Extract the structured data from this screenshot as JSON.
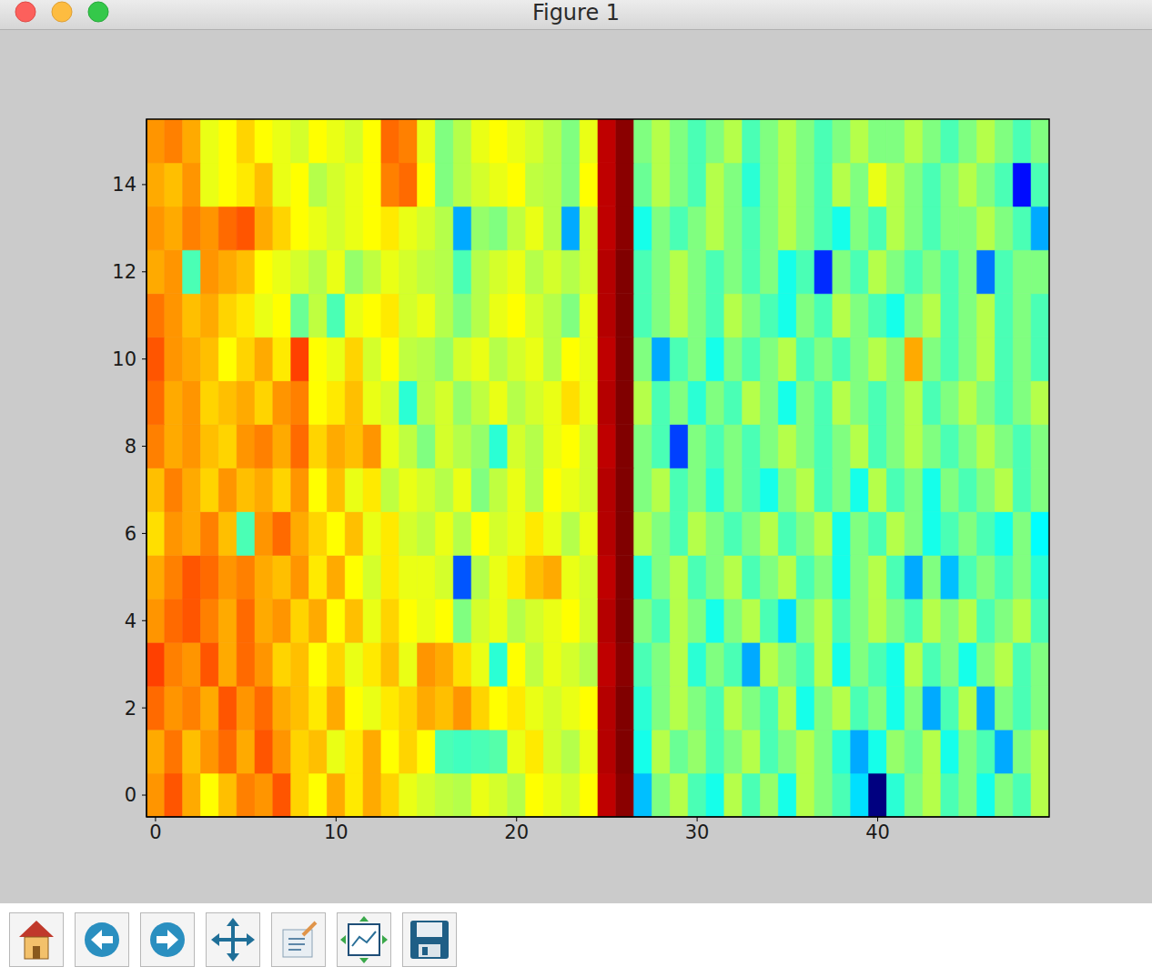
{
  "chart_data": {
    "type": "heatmap",
    "title": "Figure 1",
    "xlim": [
      -0.5,
      49.5
    ],
    "ylim": [
      -0.5,
      15.5
    ],
    "xticks": [
      0,
      10,
      20,
      30,
      40
    ],
    "yticks": [
      0,
      2,
      4,
      6,
      8,
      10,
      12,
      14
    ],
    "cells": [
      [
        0.72,
        0.78,
        0.7,
        0.62,
        0.68,
        0.74,
        0.72,
        0.78,
        0.66,
        0.62,
        0.7,
        0.64,
        0.7,
        0.66,
        0.6,
        0.58,
        0.56,
        0.55,
        0.6,
        0.58,
        0.55,
        0.62,
        0.6,
        0.58,
        0.62,
        0.92,
        0.97,
        0.32,
        0.5,
        0.55,
        0.45,
        0.4,
        0.55,
        0.45,
        0.52,
        0.4,
        0.55,
        0.5,
        0.45,
        0.35,
        0.02,
        0.42,
        0.5,
        0.55,
        0.45,
        0.5,
        0.4,
        0.5,
        0.45,
        0.55
      ],
      [
        0.7,
        0.75,
        0.68,
        0.72,
        0.76,
        0.7,
        0.78,
        0.72,
        0.66,
        0.68,
        0.6,
        0.64,
        0.7,
        0.62,
        0.66,
        0.62,
        0.45,
        0.44,
        0.45,
        0.46,
        0.6,
        0.64,
        0.58,
        0.55,
        0.6,
        0.93,
        0.98,
        0.4,
        0.55,
        0.48,
        0.52,
        0.45,
        0.5,
        0.55,
        0.45,
        0.5,
        0.55,
        0.5,
        0.42,
        0.3,
        0.4,
        0.52,
        0.48,
        0.55,
        0.4,
        0.5,
        0.45,
        0.3,
        0.5,
        0.55
      ],
      [
        0.76,
        0.72,
        0.74,
        0.7,
        0.78,
        0.72,
        0.76,
        0.7,
        0.68,
        0.64,
        0.7,
        0.62,
        0.6,
        0.64,
        0.66,
        0.7,
        0.68,
        0.72,
        0.66,
        0.62,
        0.64,
        0.6,
        0.58,
        0.6,
        0.62,
        0.93,
        0.98,
        0.42,
        0.5,
        0.55,
        0.5,
        0.45,
        0.55,
        0.5,
        0.45,
        0.55,
        0.4,
        0.5,
        0.55,
        0.45,
        0.5,
        0.4,
        0.5,
        0.3,
        0.45,
        0.55,
        0.3,
        0.5,
        0.45,
        0.5
      ],
      [
        0.8,
        0.74,
        0.72,
        0.78,
        0.7,
        0.76,
        0.72,
        0.66,
        0.68,
        0.62,
        0.66,
        0.6,
        0.64,
        0.68,
        0.6,
        0.72,
        0.7,
        0.65,
        0.6,
        0.42,
        0.62,
        0.56,
        0.6,
        0.58,
        0.55,
        0.92,
        0.97,
        0.45,
        0.5,
        0.55,
        0.42,
        0.5,
        0.45,
        0.3,
        0.55,
        0.5,
        0.45,
        0.55,
        0.4,
        0.5,
        0.45,
        0.4,
        0.55,
        0.45,
        0.5,
        0.4,
        0.5,
        0.55,
        0.45,
        0.5
      ],
      [
        0.72,
        0.76,
        0.78,
        0.74,
        0.7,
        0.76,
        0.7,
        0.72,
        0.66,
        0.7,
        0.62,
        0.68,
        0.6,
        0.66,
        0.62,
        0.6,
        0.62,
        0.5,
        0.58,
        0.6,
        0.55,
        0.58,
        0.6,
        0.62,
        0.58,
        0.93,
        0.98,
        0.5,
        0.45,
        0.55,
        0.5,
        0.4,
        0.5,
        0.55,
        0.45,
        0.35,
        0.5,
        0.55,
        0.45,
        0.5,
        0.55,
        0.5,
        0.45,
        0.55,
        0.5,
        0.55,
        0.45,
        0.5,
        0.55,
        0.45
      ],
      [
        0.7,
        0.74,
        0.78,
        0.76,
        0.72,
        0.74,
        0.7,
        0.68,
        0.72,
        0.64,
        0.7,
        0.62,
        0.58,
        0.64,
        0.6,
        0.6,
        0.58,
        0.22,
        0.55,
        0.6,
        0.64,
        0.68,
        0.7,
        0.6,
        0.58,
        0.92,
        0.98,
        0.42,
        0.5,
        0.55,
        0.45,
        0.5,
        0.55,
        0.45,
        0.5,
        0.55,
        0.45,
        0.5,
        0.4,
        0.5,
        0.55,
        0.45,
        0.3,
        0.5,
        0.32,
        0.45,
        0.5,
        0.45,
        0.5,
        0.42
      ],
      [
        0.65,
        0.72,
        0.7,
        0.74,
        0.68,
        0.45,
        0.72,
        0.76,
        0.7,
        0.66,
        0.62,
        0.68,
        0.6,
        0.64,
        0.58,
        0.56,
        0.6,
        0.55,
        0.62,
        0.58,
        0.6,
        0.64,
        0.6,
        0.55,
        0.6,
        0.93,
        0.98,
        0.55,
        0.5,
        0.45,
        0.55,
        0.5,
        0.45,
        0.5,
        0.55,
        0.45,
        0.5,
        0.55,
        0.4,
        0.5,
        0.45,
        0.55,
        0.5,
        0.4,
        0.45,
        0.5,
        0.45,
        0.4,
        0.5,
        0.38
      ],
      [
        0.68,
        0.74,
        0.7,
        0.66,
        0.72,
        0.68,
        0.7,
        0.66,
        0.72,
        0.62,
        0.68,
        0.6,
        0.64,
        0.56,
        0.6,
        0.58,
        0.55,
        0.6,
        0.5,
        0.56,
        0.6,
        0.55,
        0.62,
        0.6,
        0.58,
        0.93,
        0.98,
        0.5,
        0.55,
        0.45,
        0.5,
        0.42,
        0.5,
        0.45,
        0.4,
        0.5,
        0.55,
        0.45,
        0.5,
        0.4,
        0.55,
        0.45,
        0.5,
        0.4,
        0.5,
        0.45,
        0.5,
        0.55,
        0.45,
        0.5
      ],
      [
        0.74,
        0.7,
        0.72,
        0.68,
        0.66,
        0.72,
        0.74,
        0.7,
        0.76,
        0.66,
        0.7,
        0.68,
        0.72,
        0.6,
        0.56,
        0.5,
        0.58,
        0.55,
        0.52,
        0.42,
        0.58,
        0.55,
        0.6,
        0.62,
        0.58,
        0.92,
        0.98,
        0.5,
        0.45,
        0.2,
        0.5,
        0.45,
        0.5,
        0.45,
        0.5,
        0.55,
        0.5,
        0.45,
        0.5,
        0.55,
        0.45,
        0.5,
        0.55,
        0.5,
        0.45,
        0.5,
        0.55,
        0.5,
        0.45,
        0.5
      ],
      [
        0.76,
        0.7,
        0.72,
        0.66,
        0.68,
        0.7,
        0.66,
        0.72,
        0.74,
        0.62,
        0.64,
        0.68,
        0.6,
        0.58,
        0.42,
        0.55,
        0.58,
        0.52,
        0.56,
        0.6,
        0.55,
        0.58,
        0.6,
        0.65,
        0.6,
        0.93,
        0.98,
        0.55,
        0.45,
        0.5,
        0.42,
        0.5,
        0.45,
        0.55,
        0.5,
        0.4,
        0.5,
        0.45,
        0.55,
        0.5,
        0.45,
        0.5,
        0.55,
        0.45,
        0.5,
        0.55,
        0.5,
        0.45,
        0.5,
        0.55
      ],
      [
        0.78,
        0.72,
        0.7,
        0.68,
        0.62,
        0.66,
        0.7,
        0.64,
        0.8,
        0.62,
        0.6,
        0.66,
        0.58,
        0.62,
        0.56,
        0.55,
        0.52,
        0.58,
        0.6,
        0.55,
        0.58,
        0.6,
        0.55,
        0.62,
        0.6,
        0.92,
        0.98,
        0.5,
        0.3,
        0.45,
        0.5,
        0.4,
        0.5,
        0.45,
        0.5,
        0.55,
        0.45,
        0.5,
        0.45,
        0.5,
        0.55,
        0.5,
        0.7,
        0.5,
        0.45,
        0.5,
        0.55,
        0.45,
        0.5,
        0.45
      ],
      [
        0.75,
        0.72,
        0.68,
        0.7,
        0.66,
        0.64,
        0.6,
        0.62,
        0.48,
        0.56,
        0.45,
        0.6,
        0.62,
        0.64,
        0.58,
        0.6,
        0.55,
        0.5,
        0.55,
        0.6,
        0.62,
        0.58,
        0.55,
        0.5,
        0.6,
        0.93,
        0.98,
        0.45,
        0.5,
        0.55,
        0.5,
        0.45,
        0.55,
        0.5,
        0.45,
        0.4,
        0.5,
        0.45,
        0.55,
        0.5,
        0.45,
        0.4,
        0.5,
        0.55,
        0.45,
        0.5,
        0.55,
        0.45,
        0.5,
        0.45
      ],
      [
        0.7,
        0.72,
        0.45,
        0.72,
        0.7,
        0.68,
        0.62,
        0.6,
        0.58,
        0.55,
        0.6,
        0.52,
        0.56,
        0.6,
        0.58,
        0.56,
        0.55,
        0.45,
        0.55,
        0.58,
        0.6,
        0.55,
        0.58,
        0.55,
        0.58,
        0.93,
        0.98,
        0.45,
        0.5,
        0.55,
        0.5,
        0.45,
        0.5,
        0.45,
        0.5,
        0.4,
        0.45,
        0.18,
        0.5,
        0.45,
        0.55,
        0.5,
        0.45,
        0.5,
        0.45,
        0.5,
        0.25,
        0.45,
        0.5,
        0.5
      ],
      [
        0.72,
        0.7,
        0.74,
        0.72,
        0.76,
        0.78,
        0.7,
        0.66,
        0.62,
        0.6,
        0.58,
        0.6,
        0.62,
        0.64,
        0.6,
        0.58,
        0.55,
        0.3,
        0.52,
        0.5,
        0.56,
        0.6,
        0.55,
        0.3,
        0.58,
        0.92,
        0.97,
        0.4,
        0.5,
        0.45,
        0.5,
        0.55,
        0.5,
        0.45,
        0.5,
        0.55,
        0.5,
        0.45,
        0.4,
        0.5,
        0.45,
        0.55,
        0.5,
        0.45,
        0.5,
        0.5,
        0.55,
        0.5,
        0.45,
        0.3
      ],
      [
        0.7,
        0.68,
        0.72,
        0.6,
        0.62,
        0.64,
        0.68,
        0.6,
        0.62,
        0.55,
        0.58,
        0.6,
        0.62,
        0.74,
        0.76,
        0.62,
        0.5,
        0.55,
        0.58,
        0.6,
        0.62,
        0.56,
        0.55,
        0.5,
        0.62,
        0.92,
        0.97,
        0.48,
        0.55,
        0.5,
        0.45,
        0.55,
        0.5,
        0.42,
        0.5,
        0.55,
        0.5,
        0.45,
        0.55,
        0.5,
        0.6,
        0.55,
        0.5,
        0.45,
        0.5,
        0.55,
        0.5,
        0.45,
        0.15,
        0.45
      ],
      [
        0.72,
        0.74,
        0.7,
        0.6,
        0.62,
        0.66,
        0.62,
        0.6,
        0.58,
        0.62,
        0.6,
        0.58,
        0.62,
        0.76,
        0.74,
        0.6,
        0.5,
        0.55,
        0.6,
        0.62,
        0.6,
        0.58,
        0.55,
        0.5,
        0.6,
        0.92,
        0.97,
        0.5,
        0.55,
        0.5,
        0.45,
        0.5,
        0.55,
        0.45,
        0.5,
        0.55,
        0.5,
        0.45,
        0.5,
        0.55,
        0.5,
        0.5,
        0.55,
        0.5,
        0.45,
        0.5,
        0.55,
        0.5,
        0.45,
        0.5
      ]
    ]
  }
}
